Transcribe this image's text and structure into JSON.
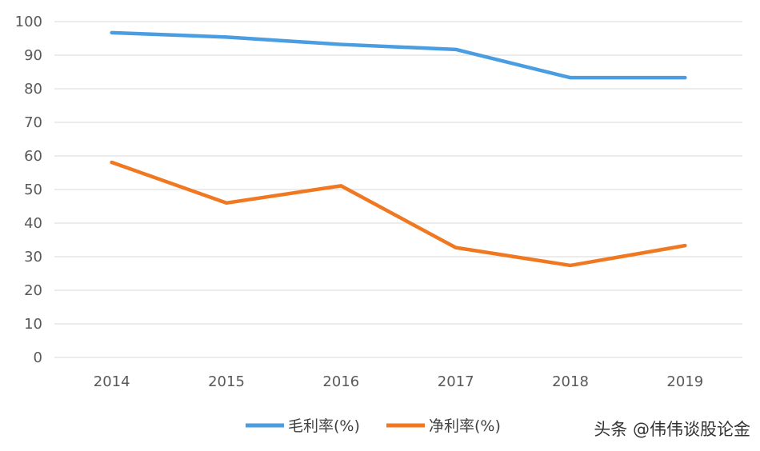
{
  "chart_data": {
    "type": "line",
    "categories": [
      "2014",
      "2015",
      "2016",
      "2017",
      "2018",
      "2019"
    ],
    "series": [
      {
        "name": "毛利率(%)",
        "color": "#4a9de0",
        "values": [
          96.7,
          95.4,
          93.2,
          91.7,
          83.3,
          83.3
        ]
      },
      {
        "name": "净利率(%)",
        "color": "#f07820",
        "values": [
          58.1,
          46.0,
          51.1,
          32.7,
          27.4,
          33.3
        ]
      }
    ],
    "yticks": [
      "0",
      "10",
      "20",
      "30",
      "40",
      "50",
      "60",
      "70",
      "80",
      "90",
      "100"
    ],
    "ylim": [
      0,
      100
    ],
    "grid": true,
    "legend_position": "bottom"
  },
  "watermark": "头条 @伟伟谈股论金",
  "colors": {
    "grid": "#d9d9d9",
    "text": "#595959"
  }
}
